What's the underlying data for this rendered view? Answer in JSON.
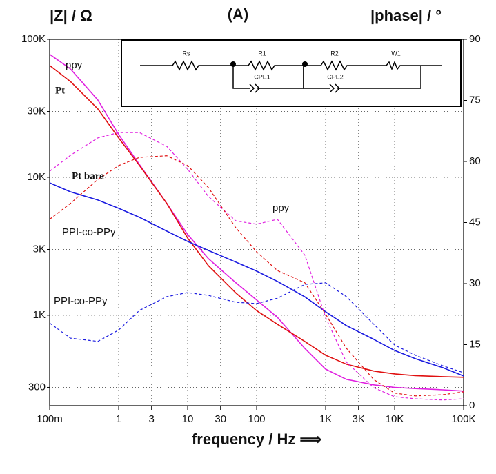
{
  "chart_data": {
    "type": "line",
    "title": "(A)",
    "y_label": "|Z| / Ω",
    "y2_label": "|phase| / °",
    "x_label": "frequency / Hz ⟹",
    "xscale": "log",
    "yscale": "log",
    "grid": true,
    "x": [
      0.1,
      0.2,
      0.5,
      1,
      2,
      5,
      10,
      20,
      50,
      100,
      200,
      500,
      1000,
      2000,
      5000,
      10000,
      20000,
      50000,
      100000
    ],
    "xlim": [
      0.1,
      100000
    ],
    "xticks": [
      {
        "value": 0.1,
        "label": "100m"
      },
      1,
      3,
      10,
      30,
      100,
      {
        "value": 1000,
        "label": "1K"
      },
      {
        "value": 3000,
        "label": "3K"
      },
      {
        "value": 10000,
        "label": "10K"
      },
      {
        "value": 100000,
        "label": "100K"
      }
    ],
    "ylim": [
      221,
      100000
    ],
    "yticks": [
      300,
      {
        "value": 1000,
        "label": "1K"
      },
      {
        "value": 3000,
        "label": "3K"
      },
      {
        "value": 10000,
        "label": "10K"
      },
      {
        "value": 30000,
        "label": "30K"
      },
      {
        "value": 100000,
        "label": "100K"
      }
    ],
    "y2lim": [
      0,
      90
    ],
    "y2ticks": [
      0,
      15,
      30,
      45,
      60,
      75,
      90
    ],
    "series": [
      {
        "name": "ppy",
        "color": "#e020e0",
        "style": "solid",
        "values": [
          78000,
          61000,
          36300,
          20400,
          12400,
          6450,
          3850,
          2570,
          1720,
          1290,
          966,
          575,
          407,
          343,
          313,
          300,
          294,
          288,
          282
        ]
      },
      {
        "name": "Pt",
        "color": "#e01010",
        "label_color": "#000000",
        "style": "solid",
        "values": [
          64600,
          49500,
          31300,
          19300,
          12200,
          6450,
          3630,
          2290,
          1450,
          1080,
          861,
          646,
          513,
          442,
          394,
          376,
          365,
          359,
          355
        ]
      },
      {
        "name": "PPI-co-PPy",
        "color": "#1a1ae0",
        "style": "solid",
        "values": [
          9120,
          7850,
          6840,
          5960,
          5130,
          4070,
          3430,
          2950,
          2430,
          2090,
          1760,
          1360,
          1060,
          841,
          668,
          556,
          484,
          417,
          363
        ]
      },
      {
        "name": "ppy",
        "color": "#e020e0",
        "style": "dashed",
        "axis": "y2",
        "values": [
          57.6,
          61.5,
          65.8,
          67.1,
          67.1,
          63.7,
          58.1,
          51.4,
          45.4,
          44.6,
          45.8,
          37,
          21.7,
          10.7,
          4.4,
          2.2,
          1.7,
          1.4,
          1.7
        ]
      },
      {
        "name": "Pt bare",
        "color": "#e01010",
        "label_color": "#000000",
        "style": "dashed",
        "axis": "y2",
        "values": [
          45.8,
          49.7,
          55.6,
          59,
          61,
          61.4,
          59,
          53.6,
          43.7,
          37.8,
          33.2,
          30.2,
          22.5,
          14.1,
          6.4,
          3.1,
          2.4,
          2.7,
          3.4
        ]
      },
      {
        "name": "PPI-co-PPy",
        "color": "#1a1ae0",
        "style": "dashed",
        "axis": "y2",
        "values": [
          20.3,
          16.6,
          15.8,
          18.6,
          23.4,
          26.8,
          27.8,
          27.1,
          25.4,
          25.1,
          26.4,
          29.8,
          30.2,
          26.8,
          20,
          14.9,
          12.4,
          9.8,
          8.1
        ]
      }
    ],
    "circuit_labels": [
      "Rs",
      "R1",
      "R2",
      "W1",
      "CPE1",
      "CPE2"
    ]
  }
}
